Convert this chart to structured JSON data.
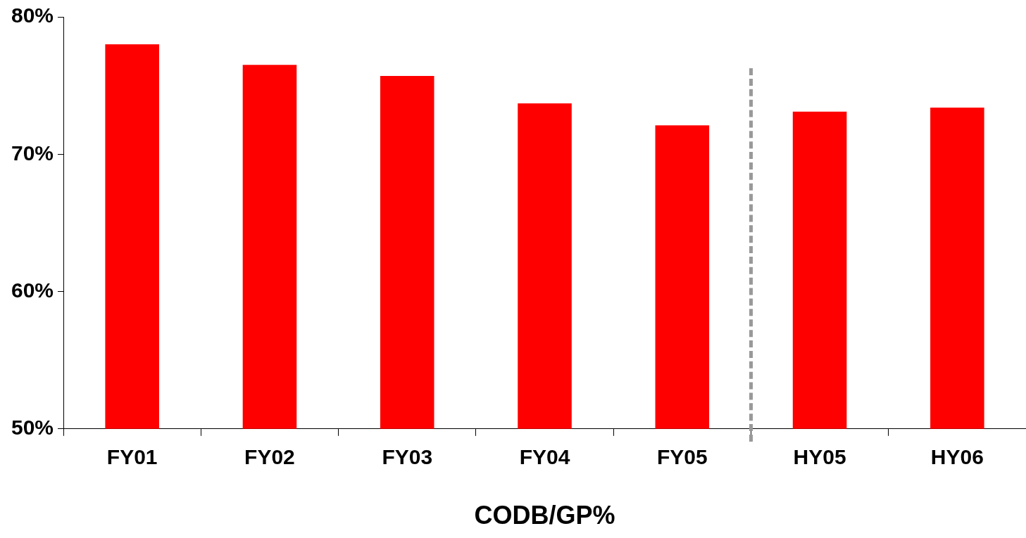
{
  "chart_data": {
    "type": "bar",
    "xlabel": "CODB/GP%",
    "categories": [
      "FY01",
      "FY02",
      "FY03",
      "FY04",
      "FY05",
      "HY05",
      "HY06"
    ],
    "values": [
      78.0,
      76.5,
      75.7,
      73.7,
      72.1,
      73.1,
      73.4
    ],
    "color": "#ff0000",
    "ylim": [
      50,
      80
    ],
    "yticks": [
      {
        "value": 50,
        "label": "50%"
      },
      {
        "value": 60,
        "label": "60%"
      },
      {
        "value": 70,
        "label": "70%"
      },
      {
        "value": 80,
        "label": "80%"
      }
    ],
    "grid": false,
    "legend": false
  }
}
